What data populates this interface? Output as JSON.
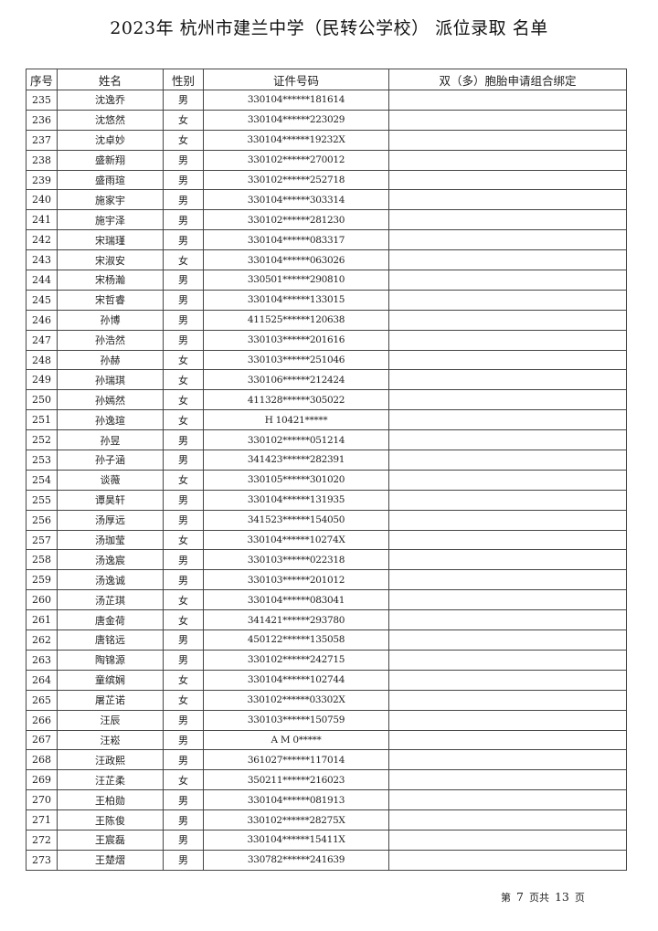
{
  "title": "2023年 杭州市建兰中学（民转公学校） 派位录取 名单",
  "columns": [
    "序号",
    "姓名",
    "性别",
    "证件号码",
    "双（多）胞胎申请组合绑定"
  ],
  "rows": [
    [
      "235",
      "沈逸乔",
      "男",
      "330104******181614",
      ""
    ],
    [
      "236",
      "沈悠然",
      "女",
      "330104******223029",
      ""
    ],
    [
      "237",
      "沈卓妙",
      "女",
      "330104******19232X",
      ""
    ],
    [
      "238",
      "盛新翔",
      "男",
      "330102******270012",
      ""
    ],
    [
      "239",
      "盛雨瑄",
      "男",
      "330102******252718",
      ""
    ],
    [
      "240",
      "施家宇",
      "男",
      "330104******303314",
      ""
    ],
    [
      "241",
      "施宇泽",
      "男",
      "330102******281230",
      ""
    ],
    [
      "242",
      "宋瑞瑾",
      "男",
      "330104******083317",
      ""
    ],
    [
      "243",
      "宋淑安",
      "女",
      "330104******063026",
      ""
    ],
    [
      "244",
      "宋杨瀚",
      "男",
      "330501******290810",
      ""
    ],
    [
      "245",
      "宋哲睿",
      "男",
      "330104******133015",
      ""
    ],
    [
      "246",
      "孙博",
      "男",
      "411525******120638",
      ""
    ],
    [
      "247",
      "孙浩然",
      "男",
      "330103******201616",
      ""
    ],
    [
      "248",
      "孙赫",
      "女",
      "330103******251046",
      ""
    ],
    [
      "249",
      "孙瑞琪",
      "女",
      "330106******212424",
      ""
    ],
    [
      "250",
      "孙嫣然",
      "女",
      "411328******305022",
      ""
    ],
    [
      "251",
      "孙逸瑄",
      "女",
      "H 10421*****",
      ""
    ],
    [
      "252",
      "孙昱",
      "男",
      "330102******051214",
      ""
    ],
    [
      "253",
      "孙子涵",
      "男",
      "341423******282391",
      ""
    ],
    [
      "254",
      "谈薇",
      "女",
      "330105******301020",
      ""
    ],
    [
      "255",
      "谭昊轩",
      "男",
      "330104******131935",
      ""
    ],
    [
      "256",
      "汤厚远",
      "男",
      "341523******154050",
      ""
    ],
    [
      "257",
      "汤珈莹",
      "女",
      "330104******10274X",
      ""
    ],
    [
      "258",
      "汤逸宸",
      "男",
      "330103******022318",
      ""
    ],
    [
      "259",
      "汤逸诚",
      "男",
      "330103******201012",
      ""
    ],
    [
      "260",
      "汤芷琪",
      "女",
      "330104******083041",
      ""
    ],
    [
      "261",
      "唐金荷",
      "女",
      "341421******293780",
      ""
    ],
    [
      "262",
      "唐铭远",
      "男",
      "450122******135058",
      ""
    ],
    [
      "263",
      "陶锦源",
      "男",
      "330102******242715",
      ""
    ],
    [
      "264",
      "童缤娴",
      "女",
      "330104******102744",
      ""
    ],
    [
      "265",
      "屠芷诺",
      "女",
      "330102******03302X",
      ""
    ],
    [
      "266",
      "汪辰",
      "男",
      "330103******150759",
      ""
    ],
    [
      "267",
      "汪崧",
      "男",
      "A M 0*****",
      ""
    ],
    [
      "268",
      "汪政熙",
      "男",
      "361027******117014",
      ""
    ],
    [
      "269",
      "汪芷柔",
      "女",
      "350211******216023",
      ""
    ],
    [
      "270",
      "王柏勋",
      "男",
      "330104******081913",
      ""
    ],
    [
      "271",
      "王陈俊",
      "男",
      "330102******28275X",
      ""
    ],
    [
      "272",
      "王宸磊",
      "男",
      "330104******15411X",
      ""
    ],
    [
      "273",
      "王楚熠",
      "男",
      "330782******241639",
      ""
    ]
  ],
  "footer": {
    "prefix": "第",
    "page": "7",
    "middle": "页共",
    "total": "13",
    "suffix": "页"
  }
}
